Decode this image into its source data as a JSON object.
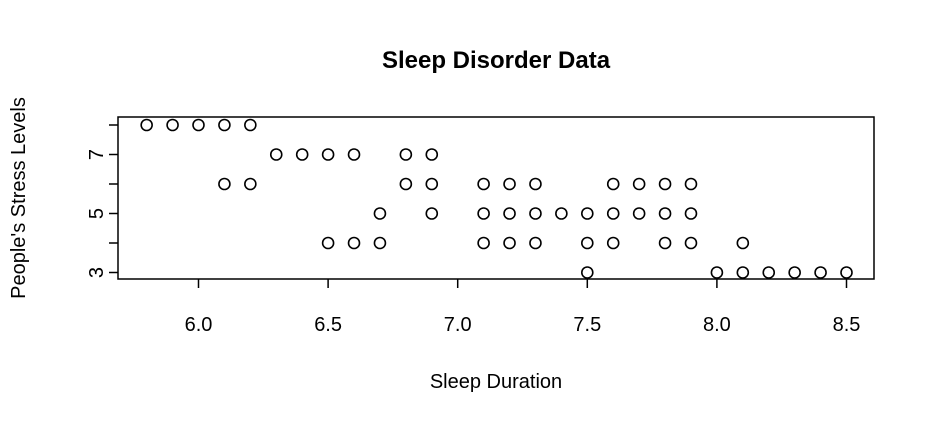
{
  "chart_data": {
    "type": "scatter",
    "title": "Sleep Disorder Data",
    "xlabel": "Sleep Duration",
    "ylabel": "People's Stress Levels",
    "xlim": [
      5.8,
      8.5
    ],
    "ylim": [
      3,
      8
    ],
    "xticks": [
      "6.0",
      "6.5",
      "7.0",
      "7.5",
      "8.0",
      "8.5"
    ],
    "xtick_values": [
      6.0,
      6.5,
      7.0,
      7.5,
      8.0,
      8.5
    ],
    "ytick_values": [
      3,
      4,
      5,
      6,
      7,
      8
    ],
    "ytick_labels": [
      "3",
      "",
      "5",
      "",
      "7",
      ""
    ],
    "grid": false,
    "point_style": "open-circle",
    "points": [
      {
        "x": 5.8,
        "y": 8
      },
      {
        "x": 5.9,
        "y": 8
      },
      {
        "x": 6.0,
        "y": 8
      },
      {
        "x": 6.1,
        "y": 8
      },
      {
        "x": 6.2,
        "y": 8
      },
      {
        "x": 6.3,
        "y": 7
      },
      {
        "x": 6.4,
        "y": 7
      },
      {
        "x": 6.5,
        "y": 7
      },
      {
        "x": 6.6,
        "y": 7
      },
      {
        "x": 6.8,
        "y": 7
      },
      {
        "x": 6.9,
        "y": 7
      },
      {
        "x": 6.1,
        "y": 6
      },
      {
        "x": 6.2,
        "y": 6
      },
      {
        "x": 6.8,
        "y": 6
      },
      {
        "x": 6.9,
        "y": 6
      },
      {
        "x": 7.1,
        "y": 6
      },
      {
        "x": 7.2,
        "y": 6
      },
      {
        "x": 7.3,
        "y": 6
      },
      {
        "x": 7.6,
        "y": 6
      },
      {
        "x": 7.7,
        "y": 6
      },
      {
        "x": 7.8,
        "y": 6
      },
      {
        "x": 7.9,
        "y": 6
      },
      {
        "x": 6.7,
        "y": 5
      },
      {
        "x": 6.9,
        "y": 5
      },
      {
        "x": 7.1,
        "y": 5
      },
      {
        "x": 7.2,
        "y": 5
      },
      {
        "x": 7.3,
        "y": 5
      },
      {
        "x": 7.4,
        "y": 5
      },
      {
        "x": 7.5,
        "y": 5
      },
      {
        "x": 7.6,
        "y": 5
      },
      {
        "x": 7.7,
        "y": 5
      },
      {
        "x": 7.8,
        "y": 5
      },
      {
        "x": 7.9,
        "y": 5
      },
      {
        "x": 6.5,
        "y": 4
      },
      {
        "x": 6.6,
        "y": 4
      },
      {
        "x": 6.7,
        "y": 4
      },
      {
        "x": 7.1,
        "y": 4
      },
      {
        "x": 7.2,
        "y": 4
      },
      {
        "x": 7.3,
        "y": 4
      },
      {
        "x": 7.5,
        "y": 4
      },
      {
        "x": 7.6,
        "y": 4
      },
      {
        "x": 7.8,
        "y": 4
      },
      {
        "x": 7.9,
        "y": 4
      },
      {
        "x": 8.1,
        "y": 4
      },
      {
        "x": 7.5,
        "y": 3
      },
      {
        "x": 8.0,
        "y": 3
      },
      {
        "x": 8.1,
        "y": 3
      },
      {
        "x": 8.2,
        "y": 3
      },
      {
        "x": 8.3,
        "y": 3
      },
      {
        "x": 8.4,
        "y": 3
      },
      {
        "x": 8.5,
        "y": 3
      }
    ]
  }
}
